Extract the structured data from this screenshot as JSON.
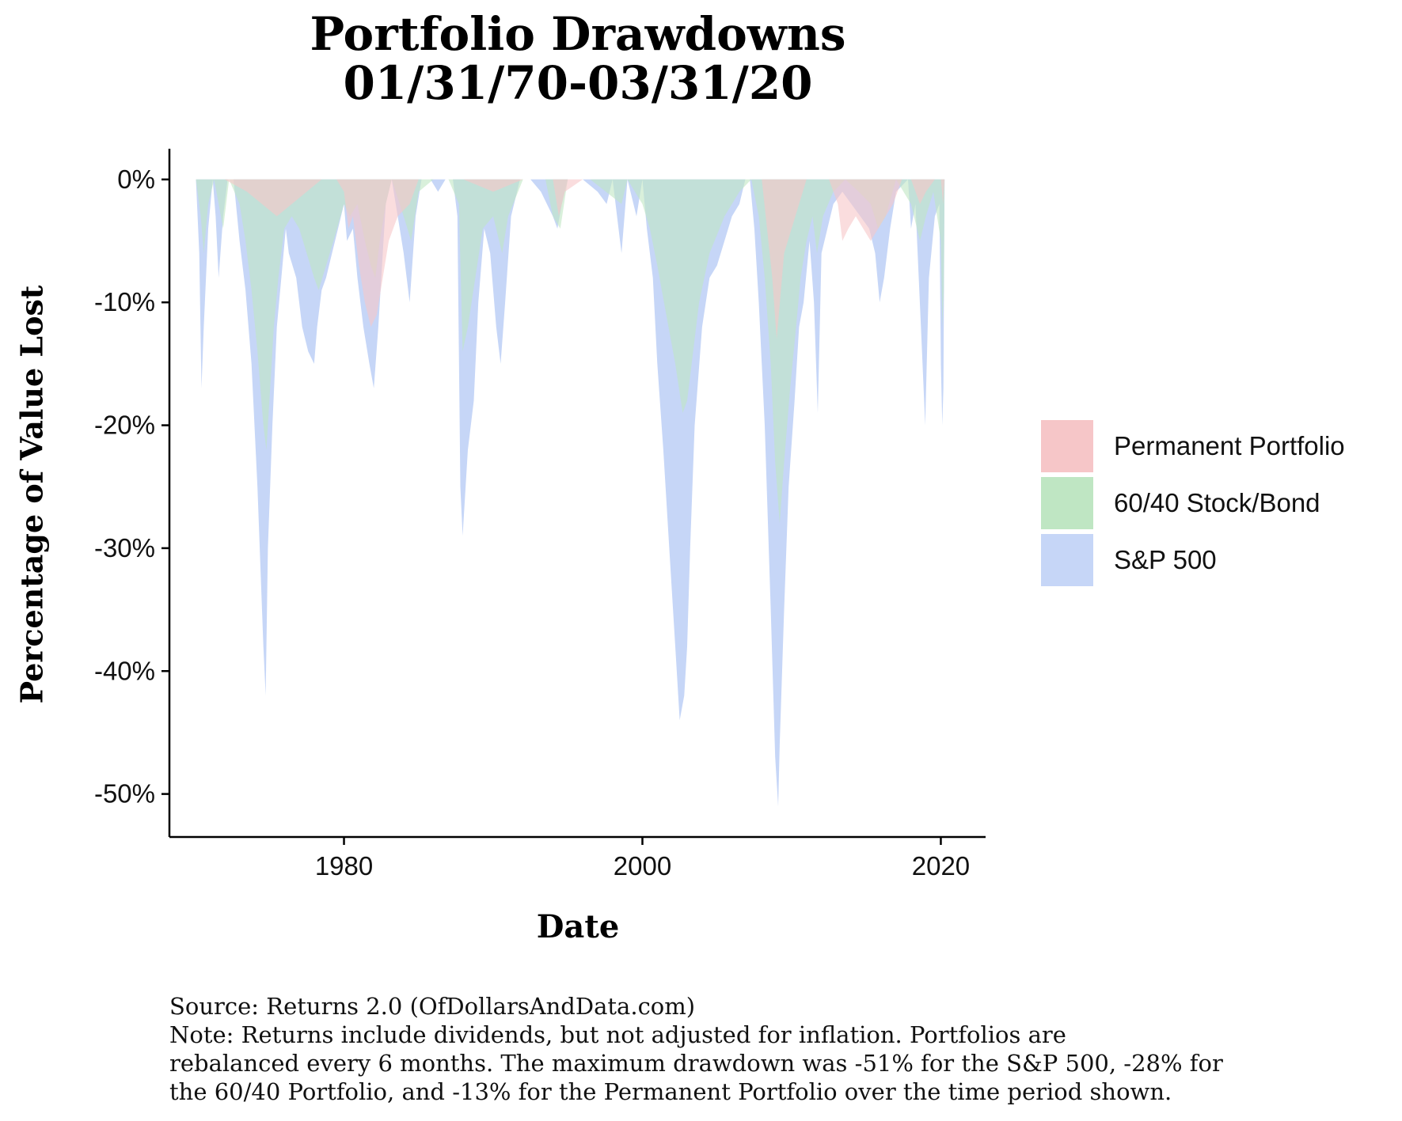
{
  "chart_data": {
    "type": "area",
    "title": [
      "Portfolio Drawdowns",
      "01/31/70-03/31/20"
    ],
    "xlabel": "Date",
    "ylabel": "Percentage of Value Lost",
    "xlim": [
      1968.3,
      2023.0
    ],
    "ylim": [
      -53.5,
      2.5
    ],
    "x_ticks": [
      1980,
      2000,
      2020
    ],
    "x_tick_labels": [
      "1980",
      "2000",
      "2020"
    ],
    "y_ticks": [
      0,
      -10,
      -20,
      -30,
      -40,
      -50
    ],
    "y_tick_labels": [
      "0%",
      "-10%",
      "-20%",
      "-30%",
      "-40%",
      "-50%"
    ],
    "grid": false,
    "legend_position": "right",
    "series": [
      {
        "name": "S&P 500",
        "color": "#c6d6f7",
        "x": [
          1970.08,
          1970.3,
          1970.45,
          1970.6,
          1970.9,
          1971.2,
          1971.4,
          1971.6,
          1971.9,
          1972.2,
          1972.6,
          1973.0,
          1973.4,
          1973.8,
          1974.2,
          1974.6,
          1974.75,
          1974.9,
          1975.2,
          1975.5,
          1975.8,
          1976.1,
          1976.3,
          1976.8,
          1977.2,
          1977.6,
          1978.0,
          1978.2,
          1978.5,
          1978.8,
          1979.2,
          1979.6,
          1980.0,
          1980.2,
          1980.6,
          1980.9,
          1981.3,
          1981.7,
          1982.0,
          1982.3,
          1982.6,
          1982.8,
          1983.2,
          1983.6,
          1984.0,
          1984.4,
          1984.8,
          1985.2,
          1985.8,
          1986.3,
          1986.8,
          1987.3,
          1987.6,
          1987.8,
          1987.95,
          1988.3,
          1988.7,
          1989.0,
          1989.4,
          1989.8,
          1990.2,
          1990.5,
          1990.8,
          1991.2,
          1991.8,
          1992.5,
          1993.2,
          1994.0,
          1994.3,
          1994.6,
          1995.0,
          1996.0,
          1997.0,
          1997.6,
          1998.0,
          1998.6,
          1999.0,
          1999.6,
          2000.0,
          2000.3,
          2000.7,
          2001.0,
          2001.4,
          2001.8,
          2002.2,
          2002.5,
          2002.8,
          2003.0,
          2003.2,
          2003.5,
          2004.0,
          2004.5,
          2005.0,
          2005.5,
          2006.0,
          2006.5,
          2006.9,
          2007.2,
          2007.5,
          2007.8,
          2008.2,
          2008.6,
          2008.9,
          2009.1,
          2009.2,
          2009.5,
          2009.8,
          2010.2,
          2010.5,
          2010.8,
          2011.2,
          2011.5,
          2011.75,
          2012.0,
          2012.4,
          2012.8,
          2013.4,
          2014.0,
          2014.6,
          2015.2,
          2015.6,
          2015.9,
          2016.2,
          2016.6,
          2017.0,
          2017.8,
          2018.0,
          2018.3,
          2018.7,
          2018.95,
          2019.2,
          2019.6,
          2019.9,
          2020.0,
          2020.1,
          2020.17,
          2020.25
        ],
        "values": [
          0,
          -6,
          -17,
          -12,
          -4,
          0,
          -3,
          -8,
          -3,
          0,
          0,
          -5,
          -9,
          -15,
          -25,
          -38,
          -42,
          -30,
          -20,
          -12,
          -8,
          -4,
          -6,
          -8,
          -12,
          -14,
          -15,
          -12,
          -9,
          -8,
          -6,
          -4,
          -2,
          -5,
          -4,
          -8,
          -12,
          -15,
          -17,
          -12,
          -6,
          -2,
          0,
          -3,
          -6,
          -10,
          -3,
          0,
          0,
          -1,
          0,
          0,
          -3,
          -25,
          -29,
          -22,
          -18,
          -10,
          -4,
          -6,
          -12,
          -15,
          -10,
          -3,
          0,
          0,
          -1,
          -3,
          -4,
          -2,
          0,
          0,
          -1,
          -2,
          0,
          -6,
          0,
          -3,
          0,
          -4,
          -8,
          -15,
          -22,
          -30,
          -38,
          -44,
          -42,
          -38,
          -30,
          -20,
          -12,
          -8,
          -7,
          -5,
          -3,
          -2,
          0,
          0,
          -4,
          -10,
          -20,
          -35,
          -47,
          -51,
          -46,
          -35,
          -25,
          -18,
          -12,
          -10,
          -5,
          -10,
          -19,
          -6,
          -4,
          -2,
          -1,
          -2,
          -3,
          -4,
          -6,
          -10,
          -8,
          -4,
          -1,
          0,
          -4,
          -2,
          -13,
          -20,
          -8,
          -3,
          -2,
          -15,
          -20,
          -17,
          0
        ]
      },
      {
        "name": "60/40 Stock/Bond",
        "color": "#bfe6c3",
        "x": [
          1970.08,
          1970.4,
          1970.6,
          1970.9,
          1971.3,
          1971.6,
          1971.9,
          1972.3,
          1973.0,
          1973.4,
          1973.8,
          1974.2,
          1974.6,
          1974.8,
          1975.0,
          1975.3,
          1975.6,
          1976.0,
          1976.5,
          1977.0,
          1977.5,
          1978.0,
          1978.3,
          1978.8,
          1979.3,
          1980.0,
          1980.4,
          1980.9,
          1981.4,
          1981.8,
          1982.1,
          1982.4,
          1982.8,
          1983.2,
          1984.0,
          1984.5,
          1985.0,
          1986.0,
          1987.0,
          1987.7,
          1987.95,
          1988.3,
          1988.8,
          1989.3,
          1990.0,
          1990.6,
          1991.0,
          1992.0,
          1993.5,
          1994.0,
          1994.5,
          1995.0,
          1996.5,
          1998.6,
          1999.0,
          2000.0,
          2000.5,
          2001.0,
          2001.6,
          2002.2,
          2002.7,
          2003.0,
          2003.3,
          2003.8,
          2004.5,
          2005.5,
          2006.5,
          2007.3,
          2007.8,
          2008.2,
          2008.6,
          2008.9,
          2009.2,
          2009.5,
          2009.9,
          2010.3,
          2010.6,
          2011.0,
          2011.4,
          2011.7,
          2012.1,
          2012.8,
          2013.6,
          2014.5,
          2015.3,
          2015.8,
          2016.3,
          2017.0,
          2018.0,
          2018.6,
          2019.0,
          2019.5,
          2020.0,
          2020.1,
          2020.2,
          2020.25
        ],
        "values": [
          0,
          -3,
          -6,
          -2,
          0,
          -2,
          -4,
          0,
          -2,
          -5,
          -9,
          -14,
          -20,
          -22,
          -18,
          -12,
          -8,
          -4,
          -3,
          -4,
          -6,
          -8,
          -9,
          -7,
          -5,
          -2,
          -3,
          -2,
          -5,
          -7,
          -8,
          -5,
          -2,
          0,
          -3,
          -5,
          -1,
          0,
          0,
          -2,
          -14,
          -12,
          -8,
          -4,
          -3,
          -6,
          -3,
          0,
          0,
          -3,
          -4,
          0,
          0,
          -2,
          0,
          -2,
          -4,
          -7,
          -11,
          -15,
          -19,
          -18,
          -15,
          -10,
          -6,
          -3,
          -1,
          0,
          -3,
          -8,
          -15,
          -23,
          -28,
          -23,
          -17,
          -12,
          -8,
          -5,
          -3,
          -6,
          -3,
          -1,
          0,
          -1,
          -2,
          -4,
          -3,
          0,
          -2,
          -5,
          -3,
          -1,
          -5,
          -12,
          -9,
          0
        ]
      },
      {
        "name": "Permanent Portfolio",
        "color": "#f6c6c8",
        "x": [
          1970.08,
          1971.0,
          1972.0,
          1973.5,
          1974.5,
          1975.5,
          1976.5,
          1977.5,
          1978.5,
          1979.5,
          1980.0,
          1980.3,
          1980.6,
          1981.0,
          1981.4,
          1981.8,
          1982.2,
          1982.6,
          1983.0,
          1983.6,
          1984.4,
          1985.0,
          1986.5,
          1988.0,
          1990.0,
          1992.0,
          1994.0,
          1994.4,
          1994.8,
          1996.0,
          1998.0,
          2000.0,
          2001.0,
          2002.0,
          2004.0,
          2006.0,
          2008.0,
          2008.7,
          2009.0,
          2009.5,
          2011.0,
          2012.5,
          2013.1,
          2013.4,
          2013.8,
          2014.3,
          2014.8,
          2015.3,
          2015.8,
          2016.3,
          2016.8,
          2017.4,
          2018.0,
          2018.6,
          2019.0,
          2019.6,
          2020.0,
          2020.15,
          2020.25
        ],
        "values": [
          0,
          0,
          0,
          -1,
          -2,
          -3,
          -2,
          -1,
          0,
          0,
          -1,
          -4,
          -3,
          -7,
          -10,
          -12,
          -11,
          -8,
          -5,
          -3,
          -2,
          0,
          0,
          0,
          -1,
          0,
          0,
          -3,
          -1,
          0,
          0,
          0,
          0,
          0,
          0,
          0,
          0,
          -8,
          -13,
          -6,
          0,
          0,
          -2,
          -5,
          -4,
          -3,
          -4,
          -5,
          -4,
          -3,
          -2,
          0,
          0,
          -2,
          -1,
          0,
          0,
          -2,
          0
        ]
      }
    ],
    "legend": [
      "Permanent Portfolio",
      "60/40 Stock/Bond",
      "S&P 500"
    ],
    "caption": [
      "Source: Returns 2.0 (OfDollarsAndData.com)",
      "Note: Returns include dividends, but not adjusted for inflation. Portfolios are",
      "rebalanced every 6 months. The maximum drawdown was -51% for the S&P 500, -28% for",
      "the 60/40 Portfolio, and -13% for the Permanent Portfolio over the time period shown."
    ]
  }
}
